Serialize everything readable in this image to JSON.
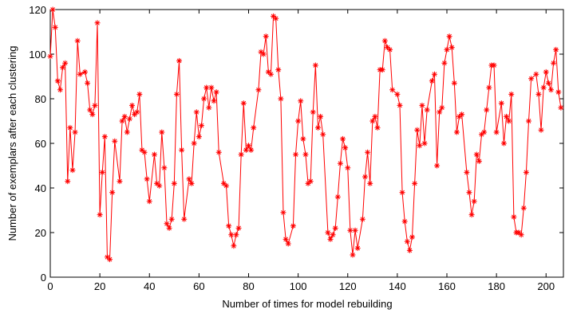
{
  "chart_data": {
    "type": "line",
    "xlabel": "Number of times for model rebuilding",
    "ylabel": "Number of exemplars after each clustering",
    "x": [
      0,
      1,
      2,
      3,
      4,
      5,
      6,
      7,
      8,
      9,
      10,
      11,
      12,
      14,
      15,
      16,
      17,
      18,
      19,
      20,
      21,
      22,
      23,
      24,
      25,
      26,
      28,
      29,
      30,
      31,
      32,
      33,
      34,
      35,
      36,
      37,
      38,
      39,
      40,
      42,
      43,
      44,
      45,
      46,
      47,
      48,
      49,
      50,
      51,
      52,
      53,
      54,
      56,
      57,
      58,
      59,
      60,
      61,
      62,
      63,
      64,
      65,
      66,
      67,
      68,
      70,
      71,
      72,
      73,
      74,
      75,
      76,
      77,
      78,
      79,
      80,
      81,
      82,
      84,
      85,
      86,
      87,
      88,
      89,
      90,
      91,
      92,
      93,
      94,
      95,
      96,
      98,
      99,
      100,
      101,
      102,
      103,
      104,
      105,
      106,
      107,
      108,
      109,
      110,
      112,
      113,
      114,
      115,
      116,
      117,
      118,
      119,
      120,
      121,
      122,
      123,
      124,
      126,
      127,
      128,
      129,
      130,
      131,
      132,
      133,
      134,
      135,
      136,
      137,
      138,
      140,
      141,
      142,
      143,
      144,
      145,
      146,
      147,
      148,
      149,
      150,
      151,
      152,
      154,
      155,
      156,
      157,
      158,
      159,
      160,
      161,
      162,
      163,
      164,
      165,
      166,
      168,
      169,
      170,
      171,
      172,
      173,
      174,
      175,
      176,
      177,
      178,
      179,
      180,
      182,
      183,
      184,
      185,
      186,
      187,
      188,
      189,
      190,
      191,
      192,
      193,
      194,
      196,
      197,
      198,
      199,
      200,
      201,
      202,
      203,
      204,
      205,
      206
    ],
    "series": [
      {
        "color": "#ff0000",
        "marker": "asterisk",
        "values": [
          99,
          120,
          112,
          88,
          84,
          94,
          96,
          43,
          67,
          48,
          65,
          106,
          91,
          92,
          87,
          75,
          73,
          77,
          114,
          28,
          47,
          63,
          9,
          8,
          38,
          61,
          43,
          70,
          72,
          65,
          71,
          77,
          73,
          74,
          82,
          57,
          56,
          44,
          34,
          55,
          42,
          41,
          65,
          49,
          24,
          22,
          26,
          42,
          82,
          97,
          57,
          26,
          44,
          42,
          60,
          74,
          63,
          68,
          80,
          85,
          76,
          85,
          79,
          83,
          56,
          42,
          41,
          23,
          19,
          14,
          19,
          22,
          55,
          78,
          57,
          59,
          57,
          67,
          84,
          101,
          100,
          108,
          92,
          91,
          117,
          116,
          93,
          80,
          29,
          17,
          15,
          23,
          55,
          70,
          79,
          62,
          55,
          42,
          43,
          74,
          95,
          67,
          72,
          64,
          20,
          17,
          19,
          22,
          36,
          51,
          62,
          58,
          49,
          21,
          10,
          21,
          13,
          26,
          45,
          56,
          42,
          70,
          72,
          67,
          93,
          93,
          106,
          103,
          102,
          84,
          82,
          77,
          38,
          25,
          16,
          12,
          18,
          42,
          66,
          59,
          77,
          60,
          75,
          88,
          91,
          50,
          74,
          76,
          96,
          102,
          108,
          103,
          87,
          65,
          72,
          73,
          47,
          38,
          28,
          34,
          55,
          52,
          64,
          65,
          75,
          85,
          95,
          95,
          65,
          78,
          60,
          72,
          70,
          82,
          27,
          20,
          20,
          19,
          31,
          47,
          70,
          89,
          91,
          82,
          66,
          85,
          92,
          87,
          84,
          96,
          102,
          83,
          76
        ]
      }
    ],
    "xlim": [
      0,
      207
    ],
    "ylim": [
      0,
      120
    ],
    "xticks": [
      0,
      20,
      40,
      60,
      80,
      100,
      120,
      140,
      160,
      180,
      200
    ],
    "yticks": [
      0,
      20,
      40,
      60,
      80,
      100,
      120
    ]
  }
}
